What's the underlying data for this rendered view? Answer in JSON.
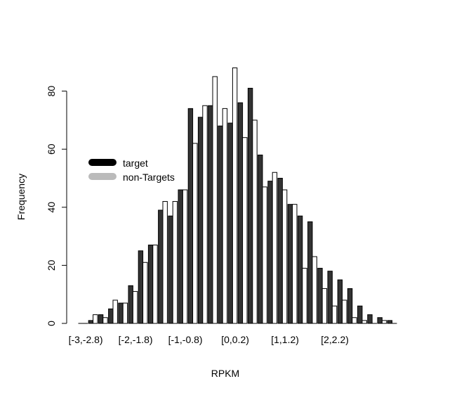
{
  "chart_data": {
    "type": "bar",
    "xlabel": "RPKM",
    "ylabel": "Frequency",
    "ylim": [
      0,
      90
    ],
    "yticks": [
      0,
      20,
      40,
      60,
      80
    ],
    "categories": [
      "[-3,-2.8)",
      "[-2.8,-2.6)",
      "[-2.6,-2.4)",
      "[-2.4,-2.2)",
      "[-2.2,-2)",
      "[-2,-1.8)",
      "[-1.8,-1.6)",
      "[-1.6,-1.4)",
      "[-1.4,-1.2)",
      "[-1.2,-1)",
      "[-1,-0.8)",
      "[-0.8,-0.6)",
      "[-0.6,-0.4)",
      "[-0.4,-0.2)",
      "[-0.2,0)",
      "[0,0.2)",
      "[0.2,0.4)",
      "[0.4,0.6)",
      "[0.6,0.8)",
      "[0.8,1)",
      "[1,1.2)",
      "[1.2,1.4)",
      "[1.4,1.6)",
      "[1.6,1.8)",
      "[1.8,2)",
      "[2,2.2)",
      "[2.2,2.4)",
      "[2.4,2.6)",
      "[2.6,2.8)",
      "[2.8,3)"
    ],
    "tick_labels": [
      {
        "index": 0,
        "text": "[-3,-2.8)"
      },
      {
        "index": 5,
        "text": "[-2,-1.8)"
      },
      {
        "index": 10,
        "text": "[-1,-0.8)"
      },
      {
        "index": 15,
        "text": "[0,0.2)"
      },
      {
        "index": 20,
        "text": "[1,1.2)"
      },
      {
        "index": 25,
        "text": "[2,2.2)"
      }
    ],
    "series": [
      {
        "name": "target",
        "color": "#333333",
        "values": [
          0,
          1,
          3,
          5,
          7,
          13,
          25,
          27,
          39,
          37,
          46,
          74,
          71,
          75,
          68,
          69,
          76,
          81,
          58,
          49,
          50,
          41,
          37,
          35,
          19,
          18,
          15,
          12,
          6,
          3
        ]
      },
      {
        "name": "non-Targets",
        "color": "#ffffff",
        "values": [
          0,
          3,
          2,
          8,
          7,
          11,
          21,
          27,
          42,
          42,
          46,
          62,
          75,
          85,
          74,
          88,
          64,
          70,
          47,
          52,
          46,
          41,
          19,
          23,
          12,
          6,
          8,
          2,
          1,
          0
        ]
      }
    ],
    "extra_bars": [
      {
        "series": "target",
        "value": 2
      },
      {
        "series": "non-Targets",
        "value": 1
      },
      {
        "series": "target",
        "value": 1
      },
      {
        "series": "non-Targets",
        "value": 0
      }
    ],
    "legend": {
      "placement": "upper-left",
      "entries": [
        {
          "label": "target",
          "color": "#000000"
        },
        {
          "label": "non-Targets",
          "color": "#bbbbbb"
        }
      ]
    },
    "grid": false
  }
}
